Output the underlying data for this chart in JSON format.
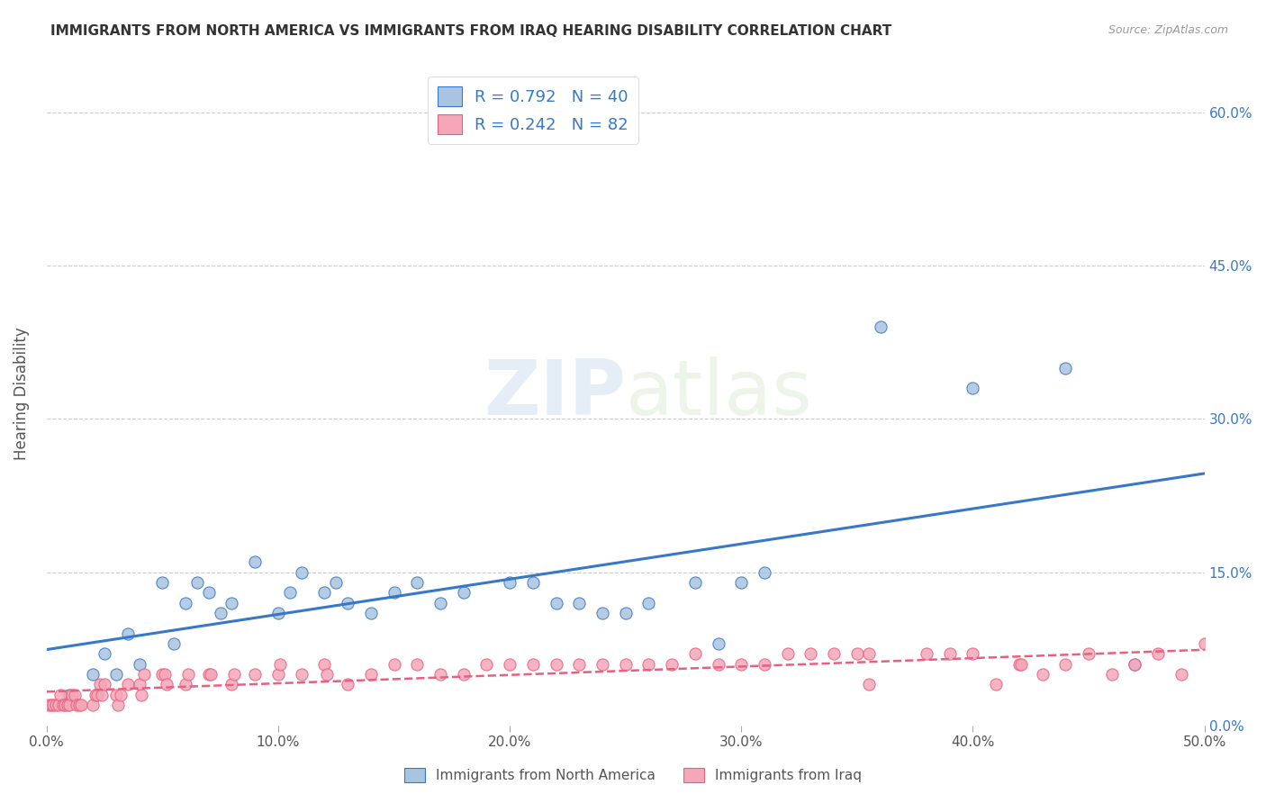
{
  "title": "IMMIGRANTS FROM NORTH AMERICA VS IMMIGRANTS FROM IRAQ HEARING DISABILITY CORRELATION CHART",
  "source": "Source: ZipAtlas.com",
  "ylabel": "Hearing Disability",
  "xlim": [
    0.0,
    0.5
  ],
  "ylim": [
    0.0,
    0.65
  ],
  "xticks": [
    0.0,
    0.1,
    0.2,
    0.3,
    0.4,
    0.5
  ],
  "xticklabels": [
    "0.0%",
    "10.0%",
    "20.0%",
    "30.0%",
    "40.0%",
    "50.0%"
  ],
  "ytick_positions": [
    0.0,
    0.15,
    0.3,
    0.45,
    0.6
  ],
  "ytick_labels_right": [
    "0.0%",
    "15.0%",
    "30.0%",
    "45.0%",
    "60.0%"
  ],
  "R_north_america": 0.792,
  "N_north_america": 40,
  "R_iraq": 0.242,
  "N_iraq": 82,
  "color_north_america": "#a8c4e0",
  "color_iraq": "#f4a7b9",
  "line_color_north_america": "#3878c8",
  "line_color_iraq": "#e86080",
  "background_color": "#ffffff",
  "watermark_zip": "ZIP",
  "watermark_atlas": "atlas",
  "legend_label_na": "Immigrants from North America",
  "legend_label_iraq": "Immigrants from Iraq",
  "north_america_x": [
    0.01,
    0.02,
    0.025,
    0.03,
    0.035,
    0.04,
    0.05,
    0.055,
    0.06,
    0.065,
    0.07,
    0.075,
    0.08,
    0.09,
    0.1,
    0.105,
    0.11,
    0.12,
    0.125,
    0.13,
    0.14,
    0.15,
    0.16,
    0.17,
    0.18,
    0.2,
    0.21,
    0.22,
    0.23,
    0.24,
    0.25,
    0.26,
    0.28,
    0.29,
    0.3,
    0.31,
    0.36,
    0.4,
    0.44,
    0.47
  ],
  "north_america_y": [
    0.03,
    0.05,
    0.07,
    0.05,
    0.09,
    0.06,
    0.14,
    0.08,
    0.12,
    0.14,
    0.13,
    0.11,
    0.12,
    0.16,
    0.11,
    0.13,
    0.15,
    0.13,
    0.14,
    0.12,
    0.11,
    0.13,
    0.14,
    0.12,
    0.13,
    0.14,
    0.14,
    0.12,
    0.12,
    0.11,
    0.11,
    0.12,
    0.14,
    0.08,
    0.14,
    0.15,
    0.39,
    0.33,
    0.35,
    0.06
  ],
  "iraq_x": [
    0.001,
    0.002,
    0.003,
    0.004,
    0.005,
    0.006,
    0.007,
    0.008,
    0.009,
    0.01,
    0.011,
    0.012,
    0.013,
    0.014,
    0.015,
    0.02,
    0.021,
    0.022,
    0.023,
    0.024,
    0.025,
    0.03,
    0.031,
    0.032,
    0.035,
    0.04,
    0.041,
    0.042,
    0.05,
    0.051,
    0.052,
    0.06,
    0.061,
    0.07,
    0.071,
    0.08,
    0.081,
    0.09,
    0.1,
    0.101,
    0.11,
    0.12,
    0.121,
    0.13,
    0.14,
    0.15,
    0.16,
    0.17,
    0.18,
    0.19,
    0.2,
    0.21,
    0.22,
    0.23,
    0.24,
    0.25,
    0.26,
    0.27,
    0.28,
    0.29,
    0.3,
    0.31,
    0.32,
    0.33,
    0.34,
    0.35,
    0.355,
    0.38,
    0.39,
    0.4,
    0.41,
    0.42,
    0.43,
    0.44,
    0.45,
    0.46,
    0.47,
    0.48,
    0.49,
    0.5,
    0.355,
    0.421
  ],
  "iraq_y": [
    0.02,
    0.02,
    0.02,
    0.02,
    0.02,
    0.03,
    0.02,
    0.02,
    0.02,
    0.02,
    0.03,
    0.03,
    0.02,
    0.02,
    0.02,
    0.02,
    0.03,
    0.03,
    0.04,
    0.03,
    0.04,
    0.03,
    0.02,
    0.03,
    0.04,
    0.04,
    0.03,
    0.05,
    0.05,
    0.05,
    0.04,
    0.04,
    0.05,
    0.05,
    0.05,
    0.04,
    0.05,
    0.05,
    0.05,
    0.06,
    0.05,
    0.06,
    0.05,
    0.04,
    0.05,
    0.06,
    0.06,
    0.05,
    0.05,
    0.06,
    0.06,
    0.06,
    0.06,
    0.06,
    0.06,
    0.06,
    0.06,
    0.06,
    0.07,
    0.06,
    0.06,
    0.06,
    0.07,
    0.07,
    0.07,
    0.07,
    0.07,
    0.07,
    0.07,
    0.07,
    0.04,
    0.06,
    0.05,
    0.06,
    0.07,
    0.05,
    0.06,
    0.07,
    0.05,
    0.08,
    0.04,
    0.06
  ]
}
